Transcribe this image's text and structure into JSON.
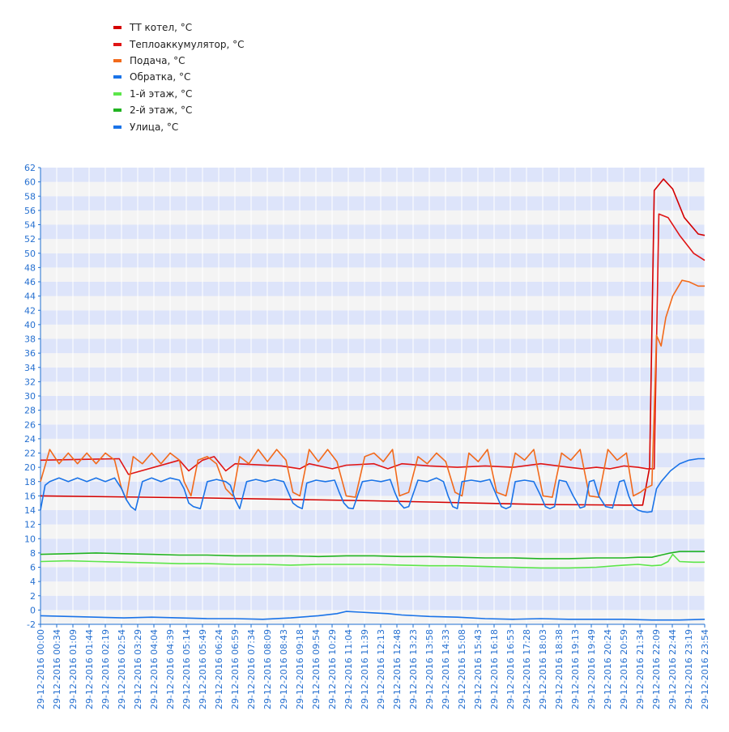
{
  "chart_data": {
    "type": "line",
    "title": "",
    "xlabel": "",
    "ylabel": "",
    "ylim": [
      -2,
      62
    ],
    "ytick_step": 2,
    "grid": true,
    "legend_position": "top-left",
    "colors": {
      "band_light": "#f4f4f4",
      "band_dark": "#dde4fa",
      "gridline": "#ffffff",
      "axis": "#1f6fd0",
      "tick_text": "#2670d0"
    },
    "x_ticks": [
      "29-12-2016 00:00",
      "29-12-2016 00:34",
      "29-12-2016 01:09",
      "29-12-2016 01:44",
      "29-12-2016 02:19",
      "29-12-2016 02:54",
      "29-12-2016 03:29",
      "29-12-2016 04:04",
      "29-12-2016 04:39",
      "29-12-2016 05:14",
      "29-12-2016 05:49",
      "29-12-2016 06:24",
      "29-12-2016 06:59",
      "29-12-2016 07:34",
      "29-12-2016 08:09",
      "29-12-2016 08:43",
      "29-12-2016 09:18",
      "29-12-2016 09:54",
      "29-12-2016 10:29",
      "29-12-2016 11:04",
      "29-12-2016 11:39",
      "29-12-2016 12:13",
      "29-12-2016 12:48",
      "29-12-2016 13:23",
      "29-12-2016 13:58",
      "29-12-2016 14:33",
      "29-12-2016 15:08",
      "29-12-2016 15:43",
      "29-12-2016 16:18",
      "29-12-2016 16:53",
      "29-12-2016 17:28",
      "29-12-2016 18:03",
      "29-12-2016 18:38",
      "29-12-2016 19:13",
      "29-12-2016 19:49",
      "29-12-2016 20:24",
      "29-12-2016 20:59",
      "29-12-2016 21:34",
      "29-12-2016 22:09",
      "29-12-2016 22:44",
      "29-12-2016 23:19",
      "29-12-2016 23:54"
    ],
    "series": [
      {
        "name": "ТТ котел, °C",
        "color": "#d40000",
        "x": [
          "00:00",
          "06:00",
          "12:00",
          "18:00",
          "21:00",
          "21:40",
          "21:55",
          "22:05",
          "22:25",
          "22:45",
          "23:10",
          "23:40",
          "23:54"
        ],
        "y": [
          16.0,
          15.7,
          15.3,
          14.8,
          14.7,
          14.7,
          20.0,
          58.8,
          60.4,
          59.0,
          55.0,
          52.7,
          52.5
        ]
      },
      {
        "name": "Теплоаккумулятор, °C",
        "color": "#e01515",
        "x": [
          "00:00",
          "02:50",
          "03:10",
          "05:00",
          "05:20",
          "05:50",
          "06:15",
          "06:40",
          "07:00",
          "08:40",
          "09:20",
          "09:40",
          "10:30",
          "11:00",
          "12:00",
          "12:30",
          "13:00",
          "14:00",
          "15:00",
          "16:00",
          "17:00",
          "18:00",
          "19:00",
          "19:30",
          "20:00",
          "20:30",
          "21:00",
          "21:30",
          "21:50",
          "22:05",
          "22:15",
          "22:35",
          "23:00",
          "23:30",
          "23:54"
        ],
        "y": [
          21.0,
          21.2,
          19.0,
          21.0,
          19.5,
          21.0,
          21.5,
          19.5,
          20.5,
          20.2,
          19.8,
          20.5,
          19.8,
          20.3,
          20.5,
          19.8,
          20.5,
          20.2,
          20.0,
          20.2,
          20.0,
          20.5,
          20.0,
          19.8,
          20.0,
          19.8,
          20.2,
          20.0,
          19.8,
          19.8,
          55.5,
          55.0,
          52.5,
          50.0,
          49.0
        ]
      },
      {
        "name": "Подача, °C",
        "color": "#f26a1b",
        "x": [
          "00:00",
          "00:20",
          "00:40",
          "01:00",
          "01:20",
          "01:40",
          "02:00",
          "02:20",
          "02:40",
          "02:55",
          "03:05",
          "03:20",
          "03:40",
          "04:00",
          "04:20",
          "04:40",
          "05:00",
          "05:10",
          "05:25",
          "05:40",
          "06:00",
          "06:20",
          "06:40",
          "06:55",
          "07:10",
          "07:30",
          "07:50",
          "08:10",
          "08:30",
          "08:50",
          "09:05",
          "09:20",
          "09:40",
          "10:00",
          "10:20",
          "10:40",
          "11:00",
          "11:20",
          "11:40",
          "12:00",
          "12:20",
          "12:40",
          "12:55",
          "13:15",
          "13:35",
          "13:55",
          "14:15",
          "14:35",
          "14:55",
          "15:10",
          "15:25",
          "15:45",
          "16:05",
          "16:25",
          "16:45",
          "17:05",
          "17:25",
          "17:45",
          "18:05",
          "18:25",
          "18:45",
          "19:05",
          "19:25",
          "19:45",
          "20:05",
          "20:25",
          "20:45",
          "21:05",
          "21:20",
          "21:35",
          "21:45",
          "22:00",
          "22:10",
          "22:20",
          "22:30",
          "22:45",
          "23:05",
          "23:20",
          "23:40",
          "23:54"
        ],
        "y": [
          18.0,
          22.5,
          20.5,
          22.0,
          20.5,
          22.0,
          20.5,
          22.0,
          21.0,
          17.0,
          15.5,
          21.5,
          20.5,
          22.0,
          20.5,
          22.0,
          21.0,
          18.0,
          16.0,
          21.0,
          21.5,
          20.5,
          17.0,
          16.0,
          21.5,
          20.5,
          22.5,
          20.8,
          22.5,
          21.0,
          16.5,
          16.0,
          22.5,
          20.8,
          22.5,
          20.8,
          16.0,
          15.8,
          21.5,
          22.0,
          20.8,
          22.5,
          16.0,
          16.5,
          21.5,
          20.5,
          22.0,
          20.8,
          16.5,
          16.0,
          22.0,
          20.8,
          22.5,
          16.5,
          16.0,
          22.0,
          21.0,
          22.5,
          16.0,
          15.8,
          22.0,
          21.0,
          22.5,
          16.0,
          15.8,
          22.5,
          21.0,
          22.0,
          16.0,
          16.5,
          17.0,
          17.5,
          38.5,
          37.0,
          41.0,
          44.0,
          46.2,
          46.0,
          45.4,
          45.4
        ]
      },
      {
        "name": "Обратка, °C",
        "color": "#1a73e8",
        "x": [
          "00:00",
          "00:10",
          "00:20",
          "00:40",
          "01:00",
          "01:20",
          "01:40",
          "02:00",
          "02:20",
          "02:40",
          "02:55",
          "03:05",
          "03:15",
          "03:25",
          "03:40",
          "04:00",
          "04:20",
          "04:40",
          "05:00",
          "05:10",
          "05:20",
          "05:30",
          "05:45",
          "06:00",
          "06:20",
          "06:40",
          "06:50",
          "07:00",
          "07:10",
          "07:25",
          "07:45",
          "08:05",
          "08:25",
          "08:45",
          "08:55",
          "09:05",
          "09:15",
          "09:25",
          "09:35",
          "09:55",
          "10:15",
          "10:35",
          "10:45",
          "10:55",
          "11:05",
          "11:15",
          "11:35",
          "11:55",
          "12:15",
          "12:35",
          "12:45",
          "12:55",
          "13:05",
          "13:15",
          "13:35",
          "13:55",
          "14:15",
          "14:30",
          "14:40",
          "14:50",
          "15:00",
          "15:10",
          "15:30",
          "15:50",
          "16:10",
          "16:25",
          "16:35",
          "16:45",
          "16:55",
          "17:05",
          "17:25",
          "17:45",
          "18:00",
          "18:10",
          "18:20",
          "18:30",
          "18:40",
          "18:55",
          "19:10",
          "19:25",
          "19:35",
          "19:45",
          "19:55",
          "20:05",
          "20:20",
          "20:35",
          "20:50",
          "21:00",
          "21:10",
          "21:20",
          "21:30",
          "21:40",
          "21:50",
          "22:00",
          "22:10",
          "22:20",
          "22:40",
          "23:00",
          "23:20",
          "23:40",
          "23:54"
        ],
        "y": [
          14.0,
          17.5,
          18.0,
          18.5,
          18.0,
          18.5,
          18.0,
          18.5,
          18.0,
          18.5,
          17.0,
          15.5,
          14.5,
          14.0,
          18.0,
          18.5,
          18.0,
          18.5,
          18.2,
          17.0,
          15.0,
          14.5,
          14.2,
          18.0,
          18.3,
          18.0,
          17.5,
          15.5,
          14.2,
          18.0,
          18.3,
          18.0,
          18.3,
          18.0,
          16.5,
          15.0,
          14.5,
          14.2,
          17.8,
          18.2,
          18.0,
          18.2,
          16.5,
          15.0,
          14.3,
          14.2,
          18.0,
          18.2,
          18.0,
          18.3,
          16.5,
          15.0,
          14.3,
          14.5,
          18.2,
          18.0,
          18.5,
          18.0,
          16.0,
          14.5,
          14.2,
          18.0,
          18.2,
          18.0,
          18.3,
          16.0,
          14.5,
          14.2,
          14.5,
          18.0,
          18.2,
          18.0,
          16.0,
          14.5,
          14.2,
          14.5,
          18.2,
          18.0,
          16.0,
          14.3,
          14.5,
          18.0,
          18.2,
          16.0,
          14.5,
          14.3,
          18.0,
          18.2,
          16.0,
          14.5,
          14.0,
          13.8,
          13.7,
          13.8,
          17.0,
          18.0,
          19.5,
          20.5,
          21.0,
          21.2,
          21.2
        ]
      },
      {
        "name": "1-й этаж, °C",
        "color": "#5ce64a",
        "x": [
          "00:00",
          "01:00",
          "02:00",
          "03:00",
          "04:00",
          "05:00",
          "06:00",
          "07:00",
          "08:00",
          "09:00",
          "10:00",
          "11:00",
          "12:00",
          "13:00",
          "14:00",
          "15:00",
          "16:00",
          "17:00",
          "18:00",
          "19:00",
          "20:00",
          "21:00",
          "21:30",
          "22:00",
          "22:20",
          "22:35",
          "22:45",
          "23:00",
          "23:30",
          "23:54"
        ],
        "y": [
          6.8,
          6.9,
          6.8,
          6.7,
          6.6,
          6.5,
          6.5,
          6.4,
          6.4,
          6.3,
          6.4,
          6.4,
          6.4,
          6.3,
          6.2,
          6.2,
          6.1,
          6.0,
          5.9,
          5.9,
          6.0,
          6.3,
          6.4,
          6.2,
          6.3,
          6.8,
          7.8,
          6.8,
          6.7,
          6.7
        ]
      },
      {
        "name": "2-й этаж, °C",
        "color": "#21b321",
        "x": [
          "00:00",
          "01:00",
          "02:00",
          "03:00",
          "04:00",
          "05:00",
          "06:00",
          "07:00",
          "08:00",
          "09:00",
          "10:00",
          "11:00",
          "12:00",
          "13:00",
          "14:00",
          "15:00",
          "16:00",
          "17:00",
          "18:00",
          "19:00",
          "20:00",
          "21:00",
          "21:30",
          "22:00",
          "22:20",
          "22:40",
          "23:00",
          "23:30",
          "23:54"
        ],
        "y": [
          7.8,
          7.9,
          8.0,
          7.9,
          7.8,
          7.7,
          7.7,
          7.6,
          7.6,
          7.6,
          7.5,
          7.6,
          7.6,
          7.5,
          7.5,
          7.4,
          7.3,
          7.3,
          7.2,
          7.2,
          7.3,
          7.3,
          7.4,
          7.4,
          7.7,
          8.0,
          8.2,
          8.2,
          8.2
        ]
      },
      {
        "name": "Улица, °C",
        "color": "#1a73e8",
        "x": [
          "00:00",
          "01:00",
          "02:00",
          "03:00",
          "04:00",
          "05:00",
          "06:00",
          "07:00",
          "08:00",
          "09:00",
          "10:00",
          "10:40",
          "11:00",
          "11:30",
          "12:00",
          "12:30",
          "13:00",
          "14:00",
          "15:00",
          "16:00",
          "17:00",
          "18:00",
          "19:00",
          "20:00",
          "21:00",
          "22:00",
          "23:00",
          "23:54"
        ],
        "y": [
          -0.8,
          -0.9,
          -1.0,
          -1.1,
          -1.0,
          -1.1,
          -1.2,
          -1.2,
          -1.3,
          -1.1,
          -0.8,
          -0.5,
          -0.2,
          -0.3,
          -0.4,
          -0.5,
          -0.7,
          -0.9,
          -1.0,
          -1.2,
          -1.3,
          -1.2,
          -1.3,
          -1.3,
          -1.3,
          -1.4,
          -1.4,
          -1.3
        ]
      }
    ]
  }
}
